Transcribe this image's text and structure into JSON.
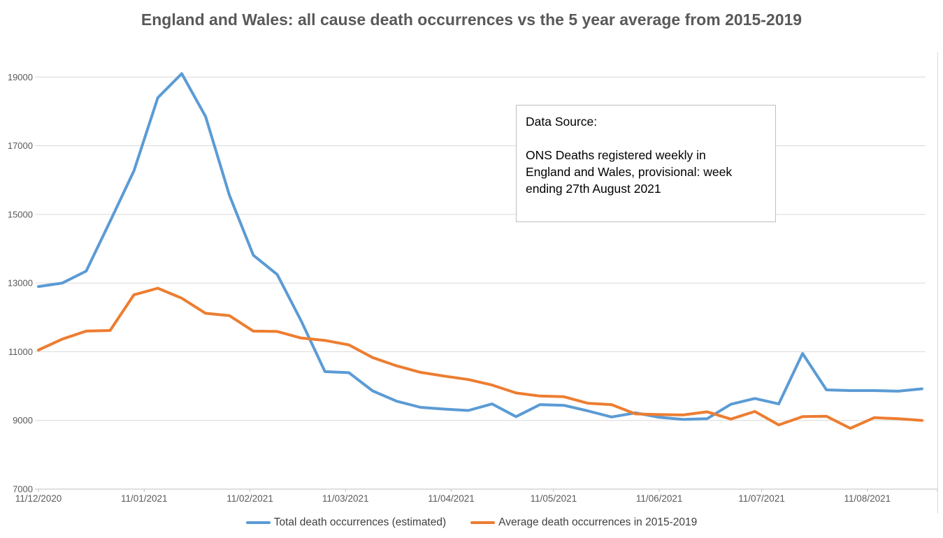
{
  "title": "England and Wales: all cause death occurrences vs the 5 year average from 2015-2019",
  "annotation_box": {
    "heading": "Data Source:",
    "body": "ONS Deaths registered weekly in England and Wales, provisional: week ending 27th August 2021"
  },
  "colors": {
    "series_total": "#5B9BD5",
    "series_average": "#ED7D31",
    "gridline": "#D9D9D9",
    "axis_line": "#BFBFBF",
    "axis_text": "#595959",
    "title_text": "#595959",
    "legend_text": "#404040",
    "box_border": "#BFBFBF",
    "background": "#FFFFFF"
  },
  "chart_data": {
    "type": "line",
    "title": "England and Wales: all cause death occurrences vs the 5 year average from 2015-2019",
    "xlabel": "",
    "ylabel": "",
    "grid": true,
    "legend_position": "bottom",
    "ylim": [
      7000,
      19400
    ],
    "yticks": [
      7000,
      9000,
      11000,
      13000,
      15000,
      17000,
      19000
    ],
    "x_tick_labels": [
      "11/12/2020",
      "11/01/2021",
      "11/02/2021",
      "11/03/2021",
      "11/04/2021",
      "11/05/2021",
      "11/06/2021",
      "11/07/2021",
      "11/08/2021"
    ],
    "x": [
      "11/12/2020",
      "18/12/2020",
      "25/12/2020",
      "01/01/2021",
      "08/01/2021",
      "15/01/2021",
      "22/01/2021",
      "29/01/2021",
      "05/02/2021",
      "12/02/2021",
      "19/02/2021",
      "26/02/2021",
      "05/03/2021",
      "12/03/2021",
      "19/03/2021",
      "26/03/2021",
      "02/04/2021",
      "09/04/2021",
      "16/04/2021",
      "23/04/2021",
      "30/04/2021",
      "07/05/2021",
      "14/05/2021",
      "21/05/2021",
      "28/05/2021",
      "04/06/2021",
      "11/06/2021",
      "18/06/2021",
      "25/06/2021",
      "02/07/2021",
      "09/07/2021",
      "16/07/2021",
      "23/07/2021",
      "30/07/2021",
      "06/08/2021",
      "13/08/2021",
      "20/08/2021",
      "27/08/2021"
    ],
    "series": [
      {
        "name": "Total death occurrences (estimated)",
        "color": "#5B9BD5",
        "values": [
          12900,
          13000,
          13350,
          14800,
          16270,
          18400,
          19100,
          17850,
          15550,
          13810,
          13250,
          11900,
          10420,
          10390,
          9860,
          9560,
          9380,
          9330,
          9290,
          9480,
          9110,
          9460,
          9440,
          9280,
          9100,
          9220,
          9090,
          9030,
          9050,
          9470,
          9640,
          9480,
          10950,
          9890,
          9870,
          9870,
          9850,
          9920
        ]
      },
      {
        "name": "Average death occurrences in 2015-2019",
        "color": "#ED7D31",
        "values": [
          11050,
          11370,
          11600,
          11620,
          12660,
          12850,
          12560,
          12120,
          12050,
          11600,
          11590,
          11400,
          11330,
          11200,
          10830,
          10590,
          10400,
          10290,
          10190,
          10030,
          9800,
          9710,
          9690,
          9500,
          9460,
          9190,
          9170,
          9160,
          9250,
          9040,
          9260,
          8870,
          9110,
          9120,
          8770,
          9080,
          9050,
          9000
        ]
      }
    ]
  }
}
